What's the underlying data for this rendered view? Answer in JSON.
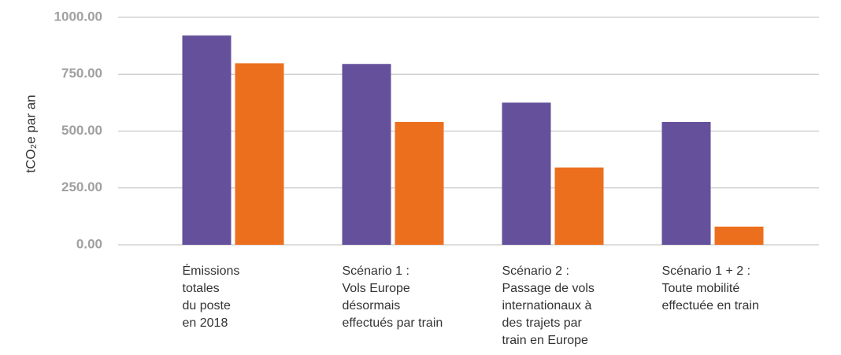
{
  "chart_data": {
    "type": "bar",
    "ylabel": "tCO₂e par an",
    "categories": [
      [
        "Émissions",
        "totales",
        "du poste",
        "en 2018"
      ],
      [
        "Scénario 1 :",
        "Vols Europe",
        "désormais",
        "effectués par train"
      ],
      [
        "Scénario 2 :",
        "Passage de vols",
        "internationaux à",
        "des trajets par",
        "train en Europe"
      ],
      [
        "Scénario 1 + 2 :",
        "Toute mobilité",
        "effectuée en train"
      ]
    ],
    "series": [
      {
        "color": "#65509b",
        "values": [
          920,
          795,
          625,
          540
        ]
      },
      {
        "color": "#ec6f1e",
        "values": [
          798,
          540,
          340,
          80
        ]
      }
    ],
    "ylim": [
      0,
      1000
    ],
    "yticks": [
      {
        "value": 0,
        "label": "0.00"
      },
      {
        "value": 250,
        "label": "250.00"
      },
      {
        "value": 500,
        "label": "500.00"
      },
      {
        "value": 750,
        "label": "750.00"
      },
      {
        "value": 1000,
        "label": "1000.00"
      }
    ],
    "grid": true
  }
}
